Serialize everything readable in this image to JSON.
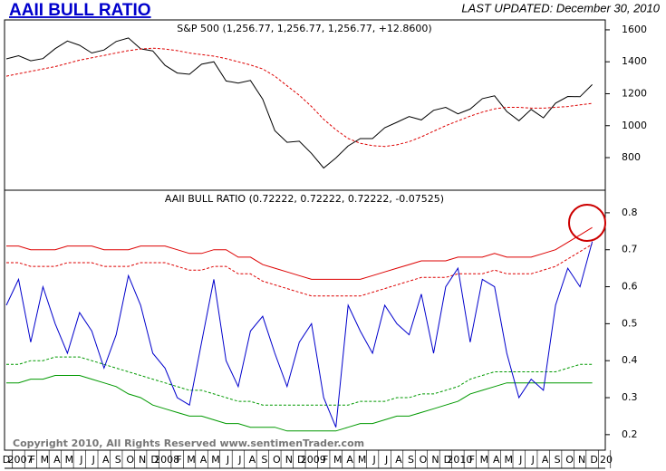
{
  "header": {
    "title": "AAII BULL RATIO",
    "updated": "LAST UPDATED:  December 30, 2010"
  },
  "footer": "Copyright 2010, All Rights Reserved  www.sentimenTrader.com",
  "chart_data": [
    {
      "type": "line",
      "title": "S&P 500 (1,256.77, 1,256.77, 1,256.77, +12.8600)",
      "ylim": [
        596,
        1662
      ],
      "yticks": [
        800,
        1000,
        1200,
        1400,
        1600
      ],
      "series": [
        {
          "color": "#000000",
          "dash": false,
          "values": [
            1418,
            1438,
            1406,
            1420,
            1482,
            1530,
            1503,
            1455,
            1474,
            1527,
            1549,
            1481,
            1468,
            1378,
            1330,
            1322,
            1385,
            1400,
            1280,
            1267,
            1283,
            1166,
            969,
            896,
            903,
            826,
            735,
            798,
            873,
            919,
            919,
            987,
            1021,
            1057,
            1036,
            1096,
            1115,
            1074,
            1104,
            1169,
            1187,
            1089,
            1031,
            1102,
            1049,
            1141,
            1183,
            1181,
            1257,
            null
          ]
        },
        {
          "color": "#dd0000",
          "dash": true,
          "values": [
            1310,
            1325,
            1340,
            1355,
            1370,
            1390,
            1410,
            1425,
            1440,
            1455,
            1470,
            1480,
            1485,
            1480,
            1470,
            1455,
            1445,
            1435,
            1420,
            1400,
            1380,
            1355,
            1310,
            1250,
            1190,
            1120,
            1040,
            975,
            920,
            890,
            875,
            870,
            880,
            900,
            930,
            965,
            1000,
            1030,
            1060,
            1085,
            1105,
            1115,
            1115,
            1110,
            1110,
            1115,
            1120,
            1130,
            1140,
            null
          ]
        }
      ]
    },
    {
      "type": "line",
      "title": "AAII BULL RATIO (0.72222, 0.72222, 0.72222, -0.07525)",
      "ylim": [
        0.158,
        0.861
      ],
      "yticks": [
        0.2,
        0.3,
        0.4,
        0.5,
        0.6,
        0.7,
        0.8
      ],
      "categories": [
        "D",
        "2007",
        "F",
        "M",
        "A",
        "M",
        "J",
        "J",
        "A",
        "S",
        "O",
        "N",
        "D",
        "2008",
        "F",
        "M",
        "A",
        "M",
        "J",
        "J",
        "A",
        "S",
        "O",
        "N",
        "D",
        "2009",
        "F",
        "M",
        "A",
        "M",
        "J",
        "J",
        "A",
        "S",
        "O",
        "N",
        "D",
        "2010",
        "F",
        "M",
        "A",
        "M",
        "J",
        "J",
        "A",
        "S",
        "O",
        "N",
        "D",
        "20"
      ],
      "series": [
        {
          "color": "#dd0000",
          "dash": false,
          "values": [
            0.71,
            0.71,
            0.7,
            0.7,
            0.7,
            0.71,
            0.71,
            0.71,
            0.7,
            0.7,
            0.7,
            0.71,
            0.71,
            0.71,
            0.7,
            0.69,
            0.69,
            0.7,
            0.7,
            0.68,
            0.68,
            0.66,
            0.65,
            0.64,
            0.63,
            0.62,
            0.62,
            0.62,
            0.62,
            0.62,
            0.63,
            0.64,
            0.65,
            0.66,
            0.67,
            0.67,
            0.67,
            0.68,
            0.68,
            0.68,
            0.69,
            0.68,
            0.68,
            0.68,
            0.69,
            0.7,
            0.72,
            0.74,
            0.76,
            null
          ]
        },
        {
          "color": "#dd0000",
          "dash": true,
          "values": [
            0.665,
            0.665,
            0.655,
            0.655,
            0.655,
            0.665,
            0.665,
            0.665,
            0.655,
            0.655,
            0.655,
            0.665,
            0.665,
            0.665,
            0.655,
            0.645,
            0.645,
            0.655,
            0.655,
            0.635,
            0.635,
            0.615,
            0.605,
            0.595,
            0.585,
            0.575,
            0.575,
            0.575,
            0.575,
            0.575,
            0.585,
            0.595,
            0.605,
            0.615,
            0.625,
            0.625,
            0.625,
            0.635,
            0.635,
            0.635,
            0.645,
            0.635,
            0.635,
            0.635,
            0.645,
            0.655,
            0.675,
            0.695,
            0.715,
            null
          ]
        },
        {
          "color": "#009900",
          "dash": true,
          "values": [
            0.39,
            0.39,
            0.4,
            0.4,
            0.41,
            0.41,
            0.41,
            0.4,
            0.39,
            0.38,
            0.37,
            0.36,
            0.35,
            0.34,
            0.33,
            0.32,
            0.32,
            0.31,
            0.3,
            0.29,
            0.29,
            0.28,
            0.28,
            0.28,
            0.28,
            0.28,
            0.28,
            0.28,
            0.28,
            0.29,
            0.29,
            0.29,
            0.3,
            0.3,
            0.31,
            0.31,
            0.32,
            0.33,
            0.35,
            0.36,
            0.37,
            0.37,
            0.37,
            0.37,
            0.37,
            0.37,
            0.38,
            0.39,
            0.39,
            null
          ]
        },
        {
          "color": "#009900",
          "dash": false,
          "values": [
            0.34,
            0.34,
            0.35,
            0.35,
            0.36,
            0.36,
            0.36,
            0.35,
            0.34,
            0.33,
            0.31,
            0.3,
            0.28,
            0.27,
            0.26,
            0.25,
            0.25,
            0.24,
            0.23,
            0.23,
            0.22,
            0.22,
            0.22,
            0.21,
            0.21,
            0.21,
            0.21,
            0.21,
            0.22,
            0.23,
            0.23,
            0.24,
            0.25,
            0.25,
            0.26,
            0.27,
            0.28,
            0.29,
            0.31,
            0.32,
            0.33,
            0.34,
            0.34,
            0.34,
            0.34,
            0.34,
            0.34,
            0.34,
            0.34,
            null
          ]
        },
        {
          "color": "#0000cc",
          "dash": false,
          "values": [
            0.55,
            0.62,
            0.45,
            0.6,
            0.5,
            0.42,
            0.53,
            0.48,
            0.38,
            0.47,
            0.63,
            0.55,
            0.42,
            0.38,
            0.3,
            0.28,
            0.45,
            0.62,
            0.4,
            0.33,
            0.48,
            0.52,
            0.42,
            0.33,
            0.45,
            0.5,
            0.3,
            0.22,
            0.55,
            0.48,
            0.42,
            0.55,
            0.5,
            0.47,
            0.58,
            0.42,
            0.6,
            0.65,
            0.45,
            0.62,
            0.6,
            0.42,
            0.3,
            0.35,
            0.32,
            0.55,
            0.65,
            0.6,
            0.72222,
            null
          ]
        }
      ]
    }
  ]
}
